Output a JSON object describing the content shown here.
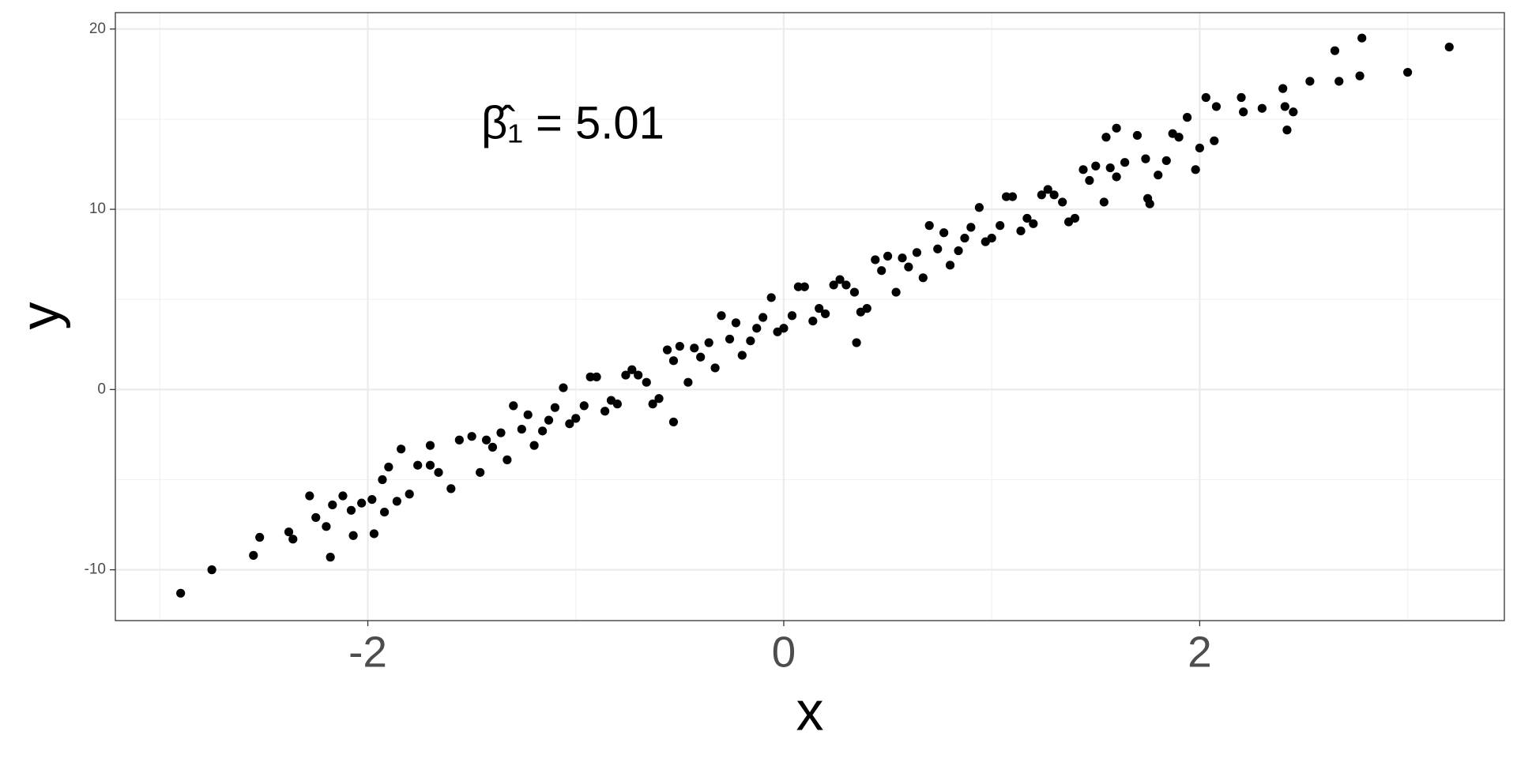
{
  "chart_data": {
    "type": "scatter",
    "annotation": "β̂₁ = 5.01",
    "x_label": "x",
    "y_label": "y",
    "color": "#000000",
    "xlim": [
      -3.214,
      3.465
    ],
    "ylim": [
      -12.82,
      20.91
    ],
    "xticks": [
      -2,
      0,
      2
    ],
    "yticks": [
      -10,
      0,
      10,
      20
    ],
    "xminor": [
      -3,
      -1,
      1,
      3
    ],
    "yminor": [
      -5,
      5,
      15
    ],
    "grid": true,
    "x": [
      -1.9,
      -1.8,
      -1.7,
      -1.6,
      -1.5,
      -1.4,
      -1.3,
      -1.2,
      -1.1,
      -1.0,
      -0.9,
      -0.8,
      -0.7,
      -0.6,
      -0.5,
      -0.4,
      -0.3,
      -0.2,
      -0.1,
      0,
      0.1,
      0.2,
      0.3,
      0.4,
      0.5,
      0.6,
      0.7,
      0.8,
      0.9,
      1.0,
      1.1,
      1.2,
      1.3,
      1.4,
      1.5,
      1.6,
      1.7,
      1.8,
      1.9,
      -1.86,
      -1.76,
      -1.66,
      -1.56,
      -1.46,
      -1.36,
      -1.26,
      -1.16,
      -1.06,
      -0.96,
      -0.86,
      -0.76,
      -0.66,
      -0.56,
      -0.46,
      -0.36,
      -0.26,
      -0.16,
      -0.06,
      0.04,
      0.14,
      0.24,
      0.34,
      0.44,
      0.54,
      0.64,
      0.74,
      0.84,
      0.94,
      1.04,
      1.14,
      1.24,
      1.34,
      1.44,
      1.54,
      1.64,
      1.74,
      1.84,
      1.94,
      -1.43,
      -1.33,
      -1.23,
      -1.13,
      -1.03,
      -0.93,
      -0.83,
      -0.73,
      -0.63,
      -0.53,
      -0.43,
      -0.33,
      -0.23,
      -0.13,
      -0.03,
      0.07,
      0.17,
      0.27,
      0.37,
      0.47,
      0.57,
      0.67,
      0.77,
      0.87,
      0.97,
      1.07,
      1.17,
      1.27,
      1.37,
      1.47,
      1.57,
      -2.9,
      -2.75,
      -2.55,
      -2.52,
      -2.38,
      -2.36,
      -2.28,
      -2.25,
      -2.2,
      -2.18,
      -2.17,
      -2.12,
      -2.08,
      -2.07,
      -2.03,
      -1.97,
      -1.98,
      -1.93,
      -1.92,
      -1.84,
      -1.7,
      -0.53,
      3.2,
      3.0,
      2.78,
      2.77,
      2.65,
      2.67,
      2.53,
      2.4,
      2.41,
      2.42,
      2.45,
      2.3,
      2.2,
      2.21,
      2.03,
      2.08,
      2.07,
      1.98,
      2.0,
      1.6,
      1.75,
      1.76,
      0.35,
      1.55,
      1.87
    ],
    "values": [
      -4.3,
      -5.8,
      -4.2,
      -5.5,
      -2.6,
      -3.2,
      -0.9,
      -3.1,
      -1.0,
      -1.6,
      0.7,
      -0.8,
      0.8,
      -0.5,
      2.4,
      1.8,
      4.1,
      1.9,
      4.0,
      3.4,
      5.7,
      4.2,
      5.8,
      4.5,
      7.4,
      6.8,
      9.1,
      6.9,
      9.0,
      8.4,
      10.7,
      9.2,
      10.8,
      9.5,
      12.4,
      11.8,
      14.1,
      11.9,
      14.0,
      -6.2,
      -4.2,
      -4.6,
      -2.8,
      -4.6,
      -2.4,
      -2.2,
      -2.3,
      0.1,
      -0.9,
      -1.2,
      0.8,
      0.4,
      2.2,
      0.4,
      2.6,
      2.8,
      2.7,
      5.1,
      4.1,
      3.8,
      5.8,
      5.4,
      7.2,
      5.4,
      7.6,
      7.8,
      7.7,
      10.1,
      9.1,
      8.8,
      10.8,
      10.4,
      12.2,
      10.4,
      12.6,
      12.8,
      12.7,
      15.1,
      -2.8,
      -3.9,
      -1.4,
      -1.7,
      -1.9,
      0.7,
      -0.6,
      1.1,
      -0.8,
      1.6,
      2.3,
      1.2,
      3.7,
      3.4,
      3.2,
      5.7,
      4.5,
      6.1,
      4.3,
      6.6,
      7.3,
      6.2,
      8.7,
      8.4,
      8.2,
      10.7,
      9.5,
      11.1,
      9.3,
      11.6,
      12.3,
      -11.3,
      -10.0,
      -9.2,
      -8.2,
      -7.9,
      -8.3,
      -5.9,
      -7.1,
      -7.6,
      -9.3,
      -6.4,
      -5.9,
      -6.7,
      -8.1,
      -6.3,
      -8.0,
      -6.1,
      -5.0,
      -6.8,
      -3.3,
      -3.1,
      -1.8,
      19.0,
      17.6,
      19.5,
      17.4,
      18.8,
      17.1,
      17.1,
      16.7,
      15.7,
      14.4,
      15.4,
      15.6,
      16.2,
      15.4,
      16.2,
      15.7,
      13.8,
      12.2,
      13.4,
      14.5,
      10.6,
      10.3,
      2.6,
      14.0,
      14.2
    ]
  }
}
